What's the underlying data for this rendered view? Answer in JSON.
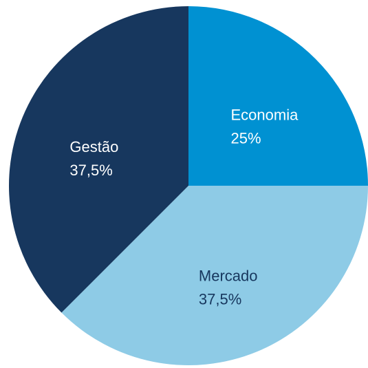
{
  "chart_data": {
    "type": "pie",
    "categories": [
      "Economia",
      "Mercado",
      "Gestão"
    ],
    "values": [
      25,
      37.5,
      37.5
    ],
    "value_labels": [
      "25%",
      "37,5%",
      "37,5%"
    ],
    "colors": [
      "#0091d2",
      "#8ecbe6",
      "#17375e"
    ],
    "label_colors": [
      "#ffffff",
      "#17375e",
      "#ffffff"
    ]
  }
}
